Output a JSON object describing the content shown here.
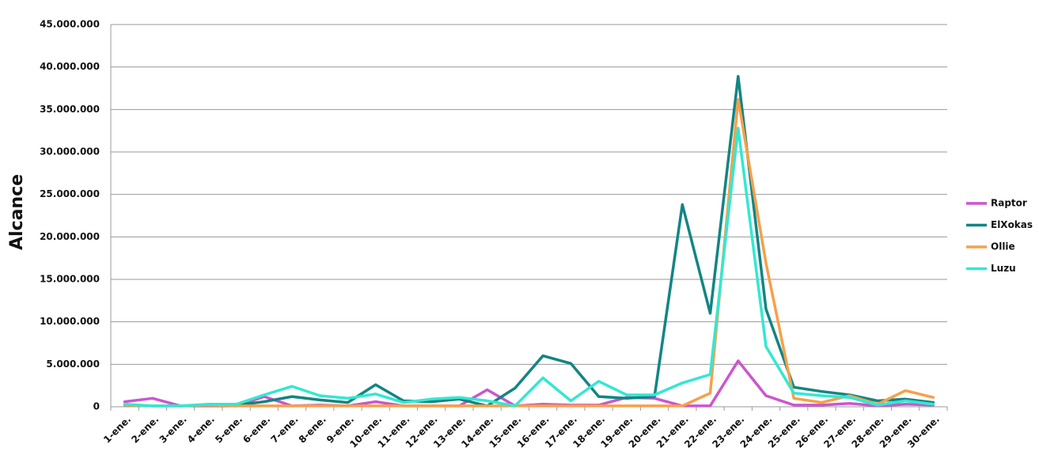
{
  "chart_data": {
    "type": "line",
    "title": "",
    "xlabel": "",
    "ylabel": "Alcance",
    "ylim": [
      0,
      45000000
    ],
    "yticks": [
      0,
      5000000,
      10000000,
      15000000,
      20000000,
      25000000,
      30000000,
      35000000,
      40000000,
      45000000
    ],
    "ytick_labels": [
      "0",
      "5.000.000",
      "10.000.000",
      "15.000.000",
      "20.000.000",
      "25.000.000",
      "30.000.000",
      "35.000.000",
      "40.000.000",
      "45.000.000"
    ],
    "grid": true,
    "legend_position": "right",
    "categories": [
      "1-ene.",
      "2-ene.",
      "3-ene.",
      "4-ene.",
      "5-ene.",
      "6-ene.",
      "7-ene.",
      "8-ene.",
      "9-ene.",
      "10-ene.",
      "11-ene.",
      "12-ene.",
      "13-ene.",
      "14-ene.",
      "15-ene.",
      "16-ene.",
      "17-ene.",
      "18-ene.",
      "19-ene.",
      "20-ene.",
      "21-ene.",
      "22-ene.",
      "23-ene.",
      "24-ene.",
      "25-ene.",
      "26-ene.",
      "27-ene.",
      "28-ene.",
      "29-ene.",
      "30-ene."
    ],
    "series": [
      {
        "name": "Raptor",
        "color": "#cc55d0",
        "values": [
          600000,
          1000000,
          100000,
          100000,
          100000,
          1200000,
          100000,
          200000,
          100000,
          600000,
          100000,
          100000,
          100000,
          2000000,
          100000,
          300000,
          200000,
          200000,
          1100000,
          1000000,
          100000,
          100000,
          5400000,
          1300000,
          200000,
          200000,
          400000,
          100000,
          300000,
          200000
        ]
      },
      {
        "name": "ElXokas",
        "color": "#128584",
        "values": [
          200000,
          100000,
          100000,
          200000,
          200000,
          600000,
          1200000,
          800000,
          500000,
          2600000,
          700000,
          600000,
          900000,
          100000,
          2200000,
          6000000,
          5100000,
          1200000,
          1000000,
          1200000,
          23800000,
          11000000,
          38900000,
          11500000,
          2300000,
          1800000,
          1400000,
          700000,
          900000,
          500000
        ]
      },
      {
        "name": "Ollie",
        "color": "#f7a04a",
        "values": [
          200000,
          100000,
          100000,
          200000,
          100000,
          100000,
          100000,
          100000,
          100000,
          100000,
          100000,
          100000,
          100000,
          100000,
          100000,
          100000,
          100000,
          100000,
          100000,
          100000,
          100000,
          1600000,
          36200000,
          16900000,
          1000000,
          500000,
          1300000,
          300000,
          1900000,
          1100000
        ]
      },
      {
        "name": "Luzu",
        "color": "#33e8d2",
        "values": [
          300000,
          100000,
          100000,
          300000,
          300000,
          1400000,
          2400000,
          1300000,
          1000000,
          1500000,
          500000,
          900000,
          1100000,
          700000,
          100000,
          3400000,
          700000,
          3000000,
          1400000,
          1400000,
          2800000,
          3800000,
          32800000,
          7100000,
          1600000,
          1300000,
          1100000,
          200000,
          700000,
          300000
        ]
      }
    ]
  }
}
